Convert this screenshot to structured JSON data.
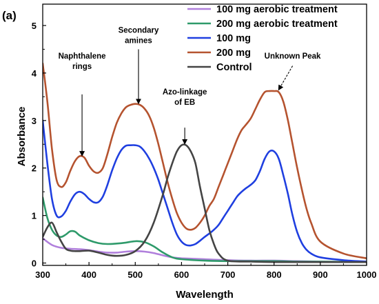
{
  "chart_data": {
    "type": "line",
    "panel_label": "(a)",
    "title": "",
    "xlabel": "Wavelength",
    "ylabel": "Absorbance",
    "xlim": [
      300,
      1000
    ],
    "ylim": [
      -0.05,
      5.45
    ],
    "xticks": [
      300,
      400,
      500,
      600,
      700,
      800,
      900,
      1000
    ],
    "yticks": [
      0,
      1,
      2,
      3,
      4,
      5
    ],
    "grid": false,
    "legend_position": "top-right",
    "series": [
      {
        "name": "100 mg aerobic treatment",
        "color": "#b07fdc",
        "x": [
          300,
          320,
          340,
          360,
          380,
          400,
          420,
          440,
          460,
          480,
          500,
          520,
          540,
          560,
          580,
          600,
          650,
          700,
          750,
          800,
          850,
          900,
          1000
        ],
        "y": [
          0.52,
          0.38,
          0.32,
          0.3,
          0.29,
          0.27,
          0.24,
          0.22,
          0.22,
          0.24,
          0.25,
          0.24,
          0.21,
          0.16,
          0.12,
          0.1,
          0.08,
          0.06,
          0.05,
          0.05,
          0.04,
          0.03,
          0.02
        ]
      },
      {
        "name": "200 mg aerobic treatment",
        "color": "#2e9a6a",
        "x": [
          300,
          310,
          320,
          330,
          340,
          350,
          360,
          370,
          380,
          400,
          420,
          440,
          460,
          480,
          500,
          520,
          540,
          560,
          580,
          600,
          650,
          700,
          750,
          800,
          850,
          900,
          1000
        ],
        "y": [
          1.38,
          0.95,
          0.7,
          0.58,
          0.55,
          0.6,
          0.67,
          0.66,
          0.58,
          0.48,
          0.42,
          0.4,
          0.41,
          0.43,
          0.46,
          0.44,
          0.35,
          0.22,
          0.12,
          0.08,
          0.05,
          0.04,
          0.04,
          0.04,
          0.03,
          0.03,
          0.02
        ]
      },
      {
        "name": "100 mg",
        "color": "#1f3fe0",
        "x": [
          300,
          310,
          320,
          330,
          340,
          350,
          360,
          370,
          380,
          390,
          400,
          410,
          420,
          430,
          440,
          450,
          460,
          470,
          480,
          490,
          500,
          510,
          520,
          530,
          540,
          550,
          560,
          570,
          580,
          590,
          600,
          610,
          620,
          630,
          640,
          650,
          660,
          670,
          680,
          690,
          700,
          710,
          720,
          730,
          740,
          750,
          760,
          770,
          780,
          790,
          800,
          810,
          820,
          830,
          840,
          850,
          860,
          870,
          880,
          900,
          950,
          1000
        ],
        "y": [
          3.0,
          2.1,
          1.35,
          1.0,
          0.98,
          1.1,
          1.3,
          1.45,
          1.5,
          1.45,
          1.35,
          1.28,
          1.28,
          1.4,
          1.65,
          1.95,
          2.2,
          2.38,
          2.47,
          2.48,
          2.48,
          2.45,
          2.35,
          2.2,
          2.0,
          1.75,
          1.45,
          1.15,
          0.85,
          0.6,
          0.45,
          0.38,
          0.37,
          0.4,
          0.47,
          0.55,
          0.62,
          0.7,
          0.8,
          0.95,
          1.1,
          1.25,
          1.4,
          1.5,
          1.58,
          1.65,
          1.75,
          1.95,
          2.2,
          2.35,
          2.35,
          2.2,
          1.85,
          1.45,
          1.0,
          0.65,
          0.42,
          0.28,
          0.2,
          0.12,
          0.06,
          0.03
        ]
      },
      {
        "name": "200 mg",
        "color": "#b5532f",
        "x": [
          300,
          310,
          320,
          330,
          340,
          350,
          360,
          370,
          380,
          390,
          400,
          410,
          420,
          430,
          440,
          450,
          460,
          470,
          480,
          490,
          500,
          510,
          520,
          530,
          540,
          550,
          560,
          570,
          580,
          590,
          600,
          610,
          620,
          630,
          640,
          650,
          660,
          670,
          680,
          690,
          700,
          710,
          720,
          730,
          740,
          750,
          760,
          770,
          780,
          790,
          800,
          810,
          820,
          830,
          840,
          850,
          860,
          870,
          880,
          900,
          950,
          1000
        ],
        "y": [
          4.2,
          3.4,
          2.4,
          1.75,
          1.6,
          1.7,
          1.95,
          2.15,
          2.25,
          2.22,
          2.05,
          1.93,
          1.9,
          2.0,
          2.3,
          2.65,
          2.95,
          3.15,
          3.28,
          3.33,
          3.35,
          3.33,
          3.25,
          3.1,
          2.85,
          2.5,
          2.1,
          1.7,
          1.35,
          1.05,
          0.85,
          0.73,
          0.7,
          0.74,
          0.85,
          1.0,
          1.2,
          1.35,
          1.6,
          1.85,
          2.1,
          2.35,
          2.6,
          2.8,
          2.92,
          3.05,
          3.25,
          3.45,
          3.6,
          3.62,
          3.62,
          3.6,
          3.4,
          3.0,
          2.5,
          2.0,
          1.55,
          1.15,
          0.85,
          0.45,
          0.2,
          0.1
        ]
      },
      {
        "name": "Control",
        "color": "#444444",
        "x": [
          300,
          310,
          320,
          330,
          340,
          350,
          360,
          370,
          380,
          400,
          420,
          440,
          460,
          480,
          500,
          520,
          540,
          560,
          570,
          580,
          590,
          600,
          610,
          620,
          630,
          640,
          650,
          660,
          670,
          680,
          700,
          750,
          800,
          900,
          1000
        ],
        "y": [
          0.55,
          0.75,
          0.85,
          0.65,
          0.45,
          0.3,
          0.26,
          0.25,
          0.25,
          0.26,
          0.22,
          0.17,
          0.15,
          0.17,
          0.25,
          0.45,
          0.85,
          1.45,
          1.8,
          2.1,
          2.35,
          2.48,
          2.48,
          2.35,
          2.1,
          1.6,
          1.15,
          0.7,
          0.4,
          0.2,
          0.05,
          0.03,
          0.02,
          0.02,
          0.02
        ]
      }
    ],
    "annotations": [
      {
        "lines": [
          "Naphthalene",
          "rings"
        ],
        "x": 385,
        "y": 4.3,
        "arrow_from": [
          385,
          3.55
        ],
        "arrow_to": [
          385,
          2.3
        ]
      },
      {
        "lines": [
          "Secondary",
          "amines"
        ],
        "x": 507,
        "y": 4.85,
        "arrow_from": [
          507,
          4.5
        ],
        "arrow_to": [
          507,
          3.4
        ]
      },
      {
        "lines": [
          "Azo-linkage",
          "of EB"
        ],
        "x": 607,
        "y": 3.55,
        "arrow_from": [
          607,
          2.85
        ],
        "arrow_to": [
          607,
          2.55
        ]
      },
      {
        "lines": [
          "Unknown Peak"
        ],
        "x": 840,
        "y": 4.3,
        "arrow_from": [
          840,
          4.15
        ],
        "arrow_to": [
          812,
          3.68
        ]
      }
    ]
  }
}
